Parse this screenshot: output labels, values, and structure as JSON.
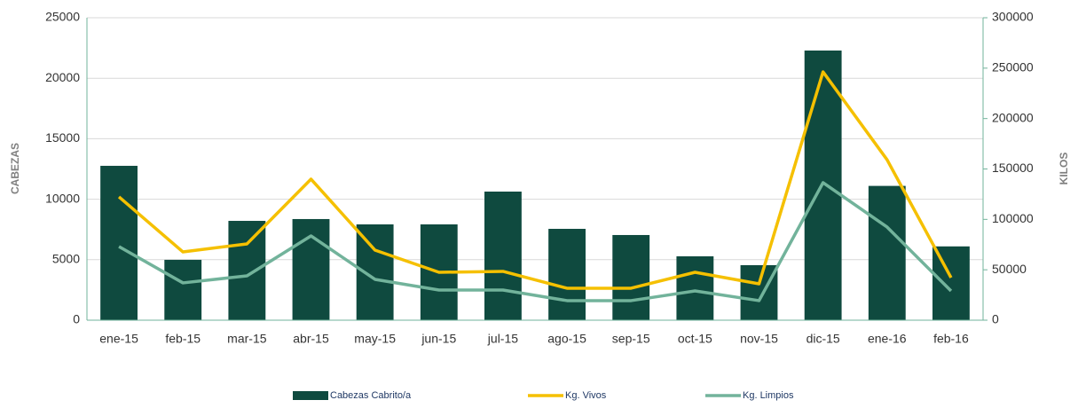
{
  "chart_data": {
    "type": "bar-line",
    "categories": [
      "ene-15",
      "feb-15",
      "mar-15",
      "abr-15",
      "may-15",
      "jun-15",
      "jul-15",
      "ago-15",
      "sep-15",
      "oct-15",
      "nov-15",
      "dic-15",
      "ene-16",
      "feb-16"
    ],
    "y_label": "CABEZAS",
    "y2_label": "KILOS",
    "series": [
      {
        "name": "Cabezas Cabrito/a",
        "color": "#0f4a3f",
        "kind": "bar",
        "values": [
          12760,
          4990,
          8210,
          8360,
          7920,
          7920,
          10630,
          7550,
          7040,
          5280,
          4550,
          22290,
          11100,
          6100
        ]
      },
      {
        "name": "Kg. Vivos",
        "color": "#f5c000",
        "kind": "line",
        "axis": "y2",
        "values": [
          122300,
          67700,
          75700,
          139900,
          69500,
          47500,
          48400,
          31700,
          31700,
          47500,
          36100,
          246300,
          159200,
          42200
        ]
      },
      {
        "name": "Kg. Limpios",
        "color": "#72b39b",
        "kind": "line",
        "axis": "y2",
        "values": [
          73000,
          37000,
          44000,
          83600,
          40500,
          29900,
          29900,
          19400,
          19400,
          29000,
          19400,
          136400,
          92400,
          29000
        ]
      }
    ],
    "ylim": [
      0,
      25000
    ],
    "yticks": [
      0,
      5000,
      10000,
      15000,
      20000,
      25000
    ],
    "y2lim": [
      0,
      300000
    ],
    "y2ticks": [
      0,
      50000,
      100000,
      150000,
      200000,
      250000,
      300000
    ],
    "grid": true,
    "legend": "bottom"
  }
}
